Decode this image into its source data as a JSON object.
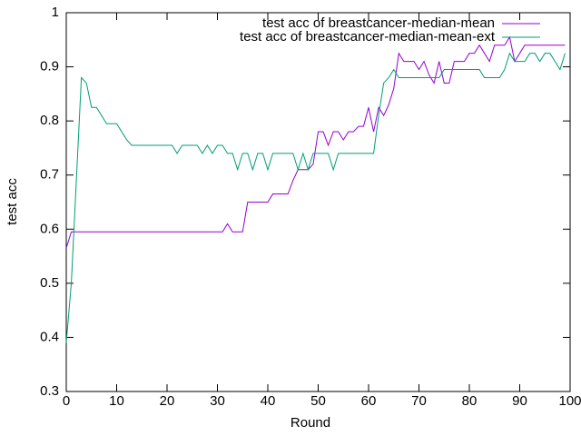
{
  "chart_data": {
    "type": "line",
    "xlabel": "Round",
    "ylabel": "test acc",
    "xlim": [
      0,
      100
    ],
    "ylim": [
      0.3,
      1
    ],
    "xticks": [
      0,
      10,
      20,
      30,
      40,
      50,
      60,
      70,
      80,
      90,
      100
    ],
    "yticks": [
      0.3,
      0.4,
      0.5,
      0.6,
      0.7,
      0.8,
      0.9,
      1
    ],
    "legend": "top-right",
    "x": [
      0,
      1,
      2,
      3,
      4,
      5,
      6,
      7,
      8,
      9,
      10,
      11,
      12,
      13,
      14,
      15,
      16,
      17,
      18,
      19,
      20,
      21,
      22,
      23,
      24,
      25,
      26,
      27,
      28,
      29,
      30,
      31,
      32,
      33,
      34,
      35,
      36,
      37,
      38,
      39,
      40,
      41,
      42,
      43,
      44,
      45,
      46,
      47,
      48,
      49,
      50,
      51,
      52,
      53,
      54,
      55,
      56,
      57,
      58,
      59,
      60,
      61,
      62,
      63,
      64,
      65,
      66,
      67,
      68,
      69,
      70,
      71,
      72,
      73,
      74,
      75,
      76,
      77,
      78,
      79,
      80,
      81,
      82,
      83,
      84,
      85,
      86,
      87,
      88,
      89,
      90,
      91,
      92,
      93,
      94,
      95,
      96,
      97,
      98,
      99
    ],
    "series": [
      {
        "name": "test acc of breastcancer-median-mean",
        "color": "#9400d3",
        "values": [
          0.565,
          0.595,
          0.595,
          0.595,
          0.595,
          0.595,
          0.595,
          0.595,
          0.595,
          0.595,
          0.595,
          0.595,
          0.595,
          0.595,
          0.595,
          0.595,
          0.595,
          0.595,
          0.595,
          0.595,
          0.595,
          0.595,
          0.595,
          0.595,
          0.595,
          0.595,
          0.595,
          0.595,
          0.595,
          0.595,
          0.595,
          0.595,
          0.61,
          0.595,
          0.595,
          0.595,
          0.65,
          0.65,
          0.65,
          0.65,
          0.65,
          0.665,
          0.665,
          0.665,
          0.665,
          0.69,
          0.71,
          0.71,
          0.71,
          0.72,
          0.78,
          0.78,
          0.755,
          0.78,
          0.78,
          0.765,
          0.78,
          0.78,
          0.79,
          0.79,
          0.825,
          0.78,
          0.825,
          0.81,
          0.83,
          0.86,
          0.925,
          0.91,
          0.91,
          0.91,
          0.895,
          0.91,
          0.885,
          0.87,
          0.91,
          0.87,
          0.87,
          0.91,
          0.91,
          0.91,
          0.925,
          0.925,
          0.94,
          0.925,
          0.91,
          0.94,
          0.94,
          0.94,
          0.955,
          0.91,
          0.925,
          0.94,
          0.94,
          0.94,
          0.94,
          0.94,
          0.94,
          0.94,
          0.94,
          0.94
        ]
      },
      {
        "name": "test acc of breastcancer-median-mean-ext",
        "color": "#009e73",
        "values": [
          0.39,
          0.5,
          0.69,
          0.88,
          0.87,
          0.825,
          0.825,
          0.81,
          0.795,
          0.795,
          0.795,
          0.78,
          0.765,
          0.755,
          0.755,
          0.755,
          0.755,
          0.755,
          0.755,
          0.755,
          0.755,
          0.755,
          0.74,
          0.755,
          0.755,
          0.755,
          0.755,
          0.74,
          0.755,
          0.74,
          0.755,
          0.755,
          0.74,
          0.74,
          0.71,
          0.74,
          0.74,
          0.71,
          0.74,
          0.74,
          0.71,
          0.74,
          0.74,
          0.74,
          0.74,
          0.74,
          0.71,
          0.74,
          0.71,
          0.74,
          0.74,
          0.74,
          0.74,
          0.71,
          0.74,
          0.74,
          0.74,
          0.74,
          0.74,
          0.74,
          0.74,
          0.74,
          0.81,
          0.87,
          0.88,
          0.895,
          0.88,
          0.88,
          0.88,
          0.88,
          0.88,
          0.88,
          0.88,
          0.88,
          0.88,
          0.895,
          0.895,
          0.895,
          0.895,
          0.895,
          0.895,
          0.895,
          0.895,
          0.88,
          0.88,
          0.88,
          0.88,
          0.895,
          0.925,
          0.91,
          0.91,
          0.91,
          0.925,
          0.925,
          0.91,
          0.925,
          0.925,
          0.91,
          0.895,
          0.925
        ]
      }
    ]
  }
}
